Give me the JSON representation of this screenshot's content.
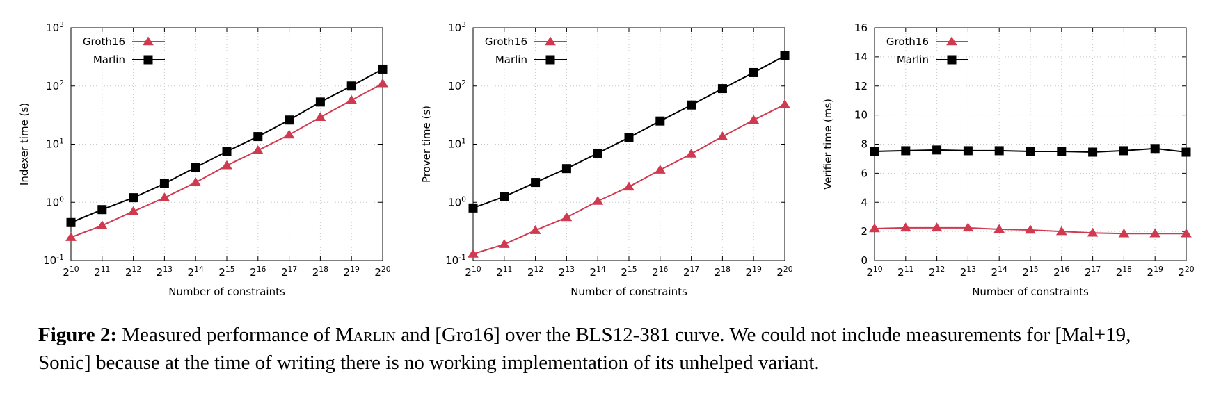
{
  "chart_data": [
    {
      "type": "line",
      "x_base": "2",
      "x": [
        10,
        11,
        12,
        13,
        14,
        15,
        16,
        17,
        18,
        19,
        20
      ],
      "xlabel": "Number of constraints",
      "ylabel": "Indexer time (s)",
      "yscale": "log",
      "ylim": [
        0.1,
        1000
      ],
      "yticks": [
        {
          "base": "10",
          "exp": "-1"
        },
        {
          "base": "10",
          "exp": "0"
        },
        {
          "base": "10",
          "exp": "1"
        },
        {
          "base": "10",
          "exp": "2"
        },
        {
          "base": "10",
          "exp": "3"
        }
      ],
      "grid": true,
      "legend": "top-left",
      "series": [
        {
          "name": "Groth16",
          "color": "#d03a50",
          "marker": "triangle",
          "values": [
            0.25,
            0.4,
            0.7,
            1.2,
            2.2,
            4.3,
            7.8,
            14.5,
            29,
            57,
            110
          ]
        },
        {
          "name": "Marlin",
          "color": "#000000",
          "marker": "square",
          "values": [
            0.45,
            0.75,
            1.2,
            2.1,
            4.0,
            7.5,
            13.5,
            26,
            53,
            100,
            195
          ]
        }
      ]
    },
    {
      "type": "line",
      "x_base": "2",
      "x": [
        10,
        11,
        12,
        13,
        14,
        15,
        16,
        17,
        18,
        19,
        20
      ],
      "xlabel": "Number of constraints",
      "ylabel": "Prover time (s)",
      "yscale": "log",
      "ylim": [
        0.1,
        1000
      ],
      "yticks": [
        {
          "base": "10",
          "exp": "-1"
        },
        {
          "base": "10",
          "exp": "0"
        },
        {
          "base": "10",
          "exp": "1"
        },
        {
          "base": "10",
          "exp": "2"
        },
        {
          "base": "10",
          "exp": "3"
        }
      ],
      "grid": true,
      "legend": "top-left",
      "series": [
        {
          "name": "Groth16",
          "color": "#d03a50",
          "marker": "triangle",
          "values": [
            0.13,
            0.19,
            0.33,
            0.55,
            1.05,
            1.85,
            3.6,
            6.8,
            13.5,
            26,
            48
          ]
        },
        {
          "name": "Marlin",
          "color": "#000000",
          "marker": "square",
          "values": [
            0.8,
            1.25,
            2.2,
            3.8,
            7.0,
            13,
            25,
            47,
            90,
            170,
            330
          ]
        }
      ]
    },
    {
      "type": "line",
      "x_base": "2",
      "x": [
        10,
        11,
        12,
        13,
        14,
        15,
        16,
        17,
        18,
        19,
        20
      ],
      "xlabel": "Number of constraints",
      "ylabel": "Verifier time (ms)",
      "yscale": "linear",
      "ylim": [
        0,
        16
      ],
      "yticks": [
        {
          "base": "0",
          "exp": ""
        },
        {
          "base": "2",
          "exp": ""
        },
        {
          "base": "4",
          "exp": ""
        },
        {
          "base": "6",
          "exp": ""
        },
        {
          "base": "8",
          "exp": ""
        },
        {
          "base": "10",
          "exp": ""
        },
        {
          "base": "12",
          "exp": ""
        },
        {
          "base": "14",
          "exp": ""
        },
        {
          "base": "16",
          "exp": ""
        }
      ],
      "grid": true,
      "legend": "top-left",
      "series": [
        {
          "name": "Groth16",
          "color": "#d03a50",
          "marker": "triangle",
          "values": [
            2.2,
            2.25,
            2.25,
            2.25,
            2.15,
            2.1,
            2.0,
            1.9,
            1.85,
            1.85,
            1.85
          ]
        },
        {
          "name": "Marlin",
          "color": "#000000",
          "marker": "square",
          "values": [
            7.5,
            7.55,
            7.6,
            7.55,
            7.55,
            7.5,
            7.5,
            7.45,
            7.55,
            7.7,
            7.45
          ]
        }
      ]
    }
  ],
  "caption": {
    "label": "Figure 2:",
    "text_1": " Measured performance of ",
    "marlin": "Marlin",
    "text_2": " and [Gro16] over the BLS12-381 curve. We could not include measurements for [Mal+19, Sonic] because at the time of writing there is no working implementation of its unhelped variant."
  }
}
